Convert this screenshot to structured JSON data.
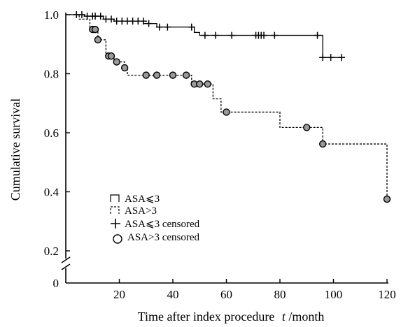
{
  "chart_data": {
    "type": "line",
    "title": "",
    "xlabel": "Time after index procedure",
    "xlabel_var": "t",
    "xlabel_unit": "/month",
    "ylabel": "Cumulative survival",
    "xlim": [
      0,
      120
    ],
    "ylim": [
      0,
      1.0
    ],
    "y_axis_break": true,
    "x_ticks": [
      20,
      40,
      60,
      80,
      100,
      120
    ],
    "x_tick_labels": [
      "20",
      "40",
      "60",
      "80",
      "100",
      "120"
    ],
    "y_ticks": [
      0,
      0.2,
      0.4,
      0.6,
      0.8,
      1.0
    ],
    "y_tick_labels": [
      "0",
      "0.2",
      "0.4",
      "0.6",
      "0.8",
      "1.0"
    ],
    "grid": false,
    "legend_position": "lower-left",
    "legend": [
      {
        "label": "ASA⩽3",
        "kind": "line",
        "style": "solid"
      },
      {
        "label": "ASA>3",
        "kind": "line",
        "style": "dashed"
      },
      {
        "label": "ASA⩽3 censored",
        "kind": "marker",
        "marker": "plus"
      },
      {
        "label": "ASA>3 censored",
        "kind": "marker",
        "marker": "circle"
      }
    ],
    "series": [
      {
        "name": "ASA⩽3",
        "style": "solid",
        "steps": [
          [
            0,
            1.0
          ],
          [
            7,
            0.995
          ],
          [
            14,
            0.985
          ],
          [
            18,
            0.978
          ],
          [
            29,
            0.97
          ],
          [
            34,
            0.958
          ],
          [
            48,
            0.94
          ],
          [
            50,
            0.93
          ],
          [
            96,
            0.855
          ],
          [
            103,
            0.855
          ]
        ],
        "censored": [
          4,
          6,
          8,
          10,
          11,
          13,
          15,
          17,
          19,
          21,
          23,
          25,
          27,
          29,
          31,
          35,
          38,
          47,
          52,
          56,
          62,
          71,
          72,
          73,
          74,
          78,
          94,
          96,
          99,
          103
        ],
        "censored_y": [
          1.0,
          1.0,
          0.995,
          0.995,
          0.995,
          0.995,
          0.985,
          0.985,
          0.978,
          0.978,
          0.978,
          0.978,
          0.978,
          0.978,
          0.97,
          0.958,
          0.958,
          0.958,
          0.93,
          0.93,
          0.93,
          0.93,
          0.93,
          0.93,
          0.93,
          0.93,
          0.93,
          0.855,
          0.855,
          0.855
        ]
      },
      {
        "name": "ASA>3",
        "style": "dashed",
        "steps": [
          [
            0,
            1.0
          ],
          [
            5,
            0.985
          ],
          [
            9,
            0.95
          ],
          [
            12,
            0.915
          ],
          [
            15,
            0.86
          ],
          [
            18,
            0.84
          ],
          [
            22,
            0.82
          ],
          [
            23,
            0.795
          ],
          [
            47,
            0.765
          ],
          [
            53,
            0.765
          ],
          [
            55,
            0.715
          ],
          [
            58,
            0.67
          ],
          [
            80,
            0.618
          ],
          [
            96,
            0.562
          ],
          [
            120,
            0.375
          ]
        ],
        "censored": [
          10,
          11,
          12,
          16,
          17,
          19,
          22,
          30,
          34,
          40,
          45,
          48,
          50,
          53,
          60,
          90,
          96,
          120
        ],
        "censored_y": [
          0.95,
          0.95,
          0.915,
          0.86,
          0.86,
          0.84,
          0.82,
          0.795,
          0.795,
          0.795,
          0.795,
          0.765,
          0.765,
          0.765,
          0.67,
          0.618,
          0.562,
          0.375
        ]
      }
    ]
  }
}
